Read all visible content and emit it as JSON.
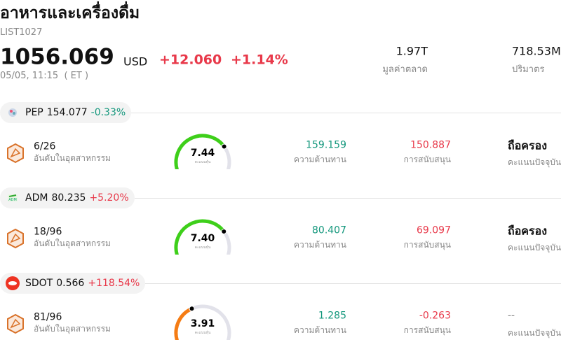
{
  "header": {
    "title": "อาหารและเครื่องดื่ม",
    "code": "LIST1027",
    "price": "1056.069",
    "currency": "USD",
    "change": "+12.060",
    "change_pct": "+1.14%",
    "time": "05/05, 11:15  ( ET )",
    "stats": [
      {
        "value": "1.97T",
        "label": "มูลค่าตลาด"
      },
      {
        "value": "718.53M",
        "label": "ปริมาตร"
      }
    ]
  },
  "score_range": [
    0,
    10
  ],
  "stocks": [
    {
      "ticker": "PEP",
      "price": "154.077",
      "change": "-0.33%",
      "rank": "6/26",
      "rank_label": "อันดับในอุตสาหกรรม",
      "score": "7.44",
      "score_label": "คะแนนหุ้น",
      "gauge_color": "#3ecf1a",
      "resistance": "159.159",
      "resistance_label": "ความต้านทาน",
      "support": "150.887",
      "support_label": "การสนับสนุน",
      "rating": "ถือครอง",
      "rating_label": "คะแนนปัจจุบัน"
    },
    {
      "ticker": "ADM",
      "price": "80.235",
      "change": "+5.20%",
      "rank": "18/96",
      "rank_label": "อันดับในอุตสาหกรรม",
      "score": "7.40",
      "score_label": "คะแนนหุ้น",
      "gauge_color": "#3ecf1a",
      "resistance": "80.407",
      "resistance_label": "ความต้านทาน",
      "support": "69.097",
      "support_label": "การสนับสนุน",
      "rating": "ถือครอง",
      "rating_label": "คะแนนปัจจุบัน"
    },
    {
      "ticker": "SDOT",
      "price": "0.566",
      "change": "+118.54%",
      "rank": "81/96",
      "rank_label": "อันดับในอุตสาหกรรม",
      "score": "3.91",
      "score_label": "คะแนนหุ้น",
      "gauge_color": "#f57c14",
      "resistance": "1.285",
      "resistance_label": "ความต้านทาน",
      "support": "-0.263",
      "support_label": "การสนับสนุน",
      "rating": "--",
      "rating_label": "คะแนนปัจจุบัน"
    }
  ]
}
